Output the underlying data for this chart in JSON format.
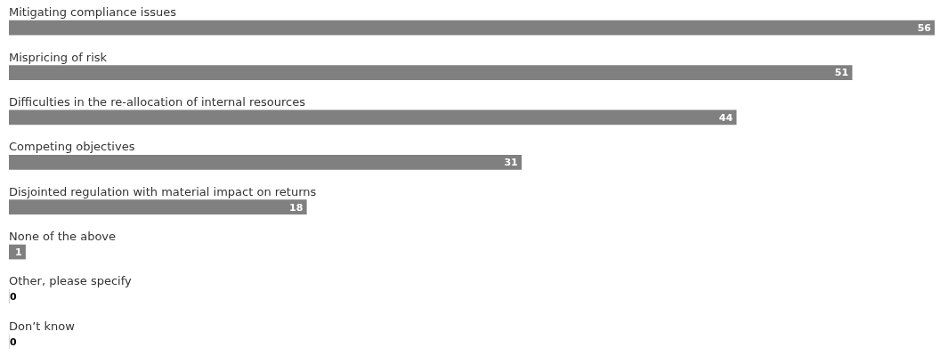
{
  "chart_data": {
    "type": "bar",
    "orientation": "horizontal",
    "categories": [
      "Mitigating compliance issues",
      "Mispricing of risk",
      "Difficulties in the re-allocation of internal resources",
      "Competing objectives",
      "Disjointed regulation with material impact on returns",
      "None of the above",
      "Other, please specify",
      "Don’t know"
    ],
    "values": [
      56,
      51,
      44,
      31,
      18,
      1,
      0,
      0
    ],
    "color": "#808080",
    "data_labels": true
  }
}
